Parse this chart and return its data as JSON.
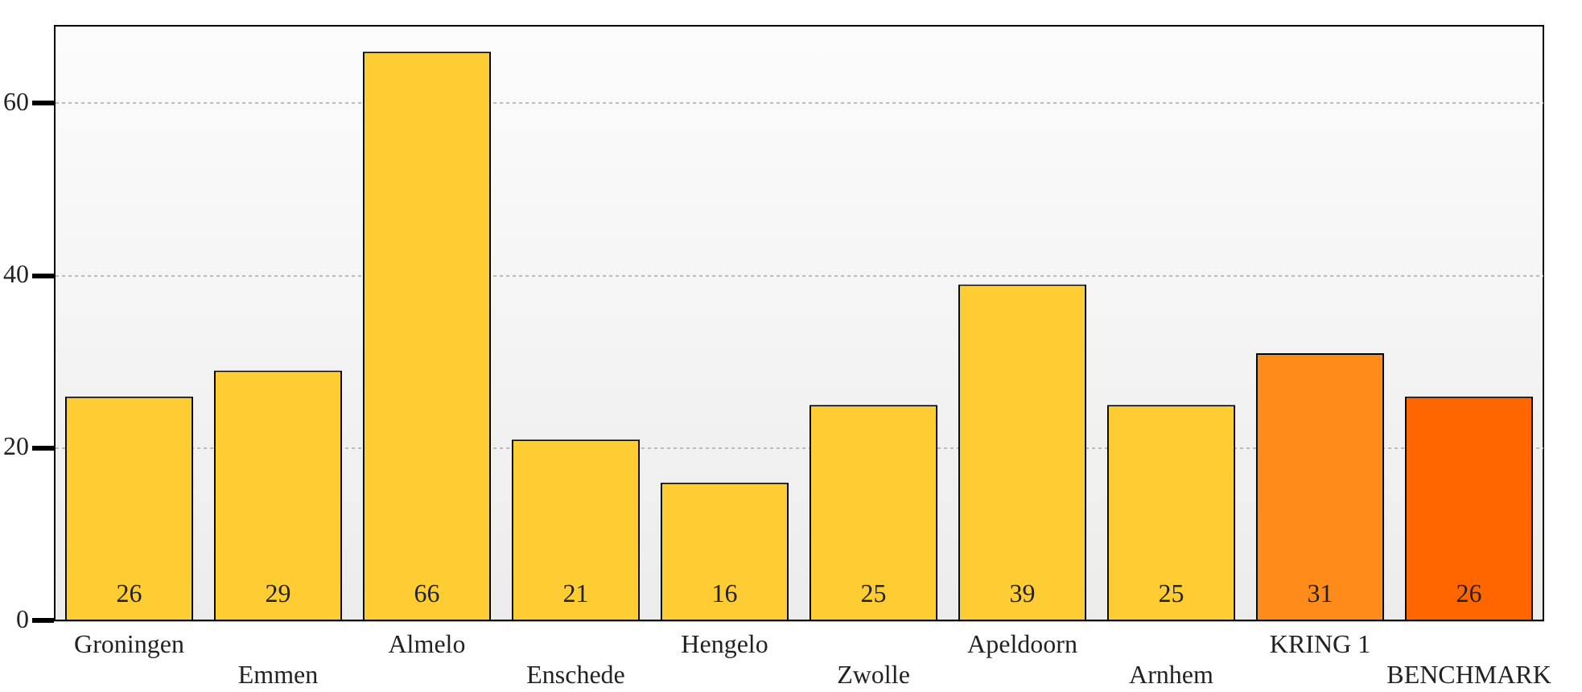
{
  "chart_data": {
    "type": "bar",
    "categories": [
      "Groningen",
      "Emmen",
      "Almelo",
      "Enschede",
      "Hengelo",
      "Zwolle",
      "Apeldoorn",
      "Arnhem",
      "KRING 1",
      "BENCHMARK"
    ],
    "values": [
      26,
      29,
      66,
      21,
      16,
      25,
      39,
      25,
      31,
      26
    ],
    "colors": [
      "#fecc33",
      "#fecc33",
      "#fecc33",
      "#fecc33",
      "#fecc33",
      "#fecc33",
      "#fecc33",
      "#fecc33",
      "#ff8c1a",
      "#ff6600"
    ],
    "ylim": [
      0,
      69
    ],
    "yticks": [
      0,
      20,
      40,
      60
    ],
    "grid": "y",
    "data_labels": true,
    "legend": false
  }
}
